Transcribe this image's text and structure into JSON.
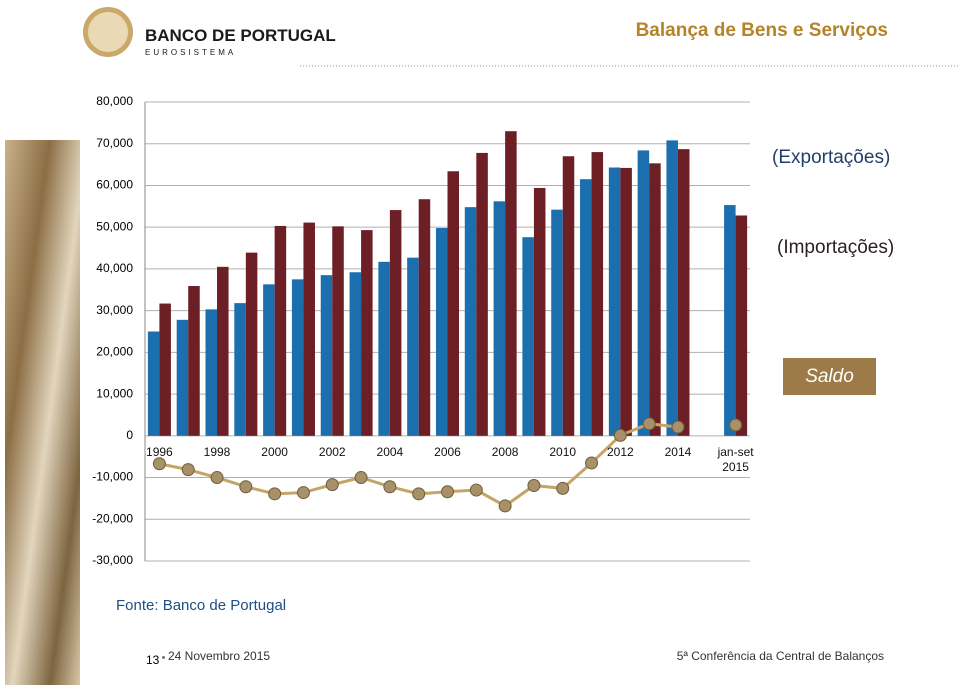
{
  "header": {
    "org": "BANCO DE PORTUGAL",
    "org_sub": "EUROSISTEMA",
    "title": "Balança de Bens e Serviços"
  },
  "chart_data": {
    "type": "bar",
    "categories": [
      "1996",
      null,
      "1998",
      null,
      "2000",
      null,
      "2002",
      null,
      "2004",
      null,
      "2006",
      null,
      "2008",
      null,
      "2010",
      null,
      "2012",
      null,
      "2014",
      null,
      "jan-set\n2015"
    ],
    "series": [
      {
        "name": "(Exportações)",
        "color": "#1c6fae",
        "values": [
          25000,
          27800,
          30300,
          31800,
          36300,
          37500,
          38500,
          39200,
          41700,
          42700,
          49800,
          54800,
          56200,
          47600,
          54200,
          61500,
          64300,
          68400,
          70800,
          null,
          55300
        ]
      },
      {
        "name": "(Importações)",
        "color": "#6d1f26",
        "values": [
          31700,
          35900,
          40500,
          43900,
          50300,
          51100,
          50200,
          49300,
          54100,
          56700,
          63400,
          67800,
          73000,
          59400,
          67000,
          68000,
          64200,
          65300,
          68700,
          null,
          52800
        ]
      },
      {
        "name": "Saldo",
        "type": "line",
        "color": "#9c7b49",
        "values": [
          -6700,
          -8100,
          -10000,
          -12200,
          -13900,
          -13600,
          -11700,
          -10000,
          -12200,
          -13900,
          -13400,
          -13000,
          -16800,
          -11900,
          -12600,
          -6500,
          100,
          2900,
          2100,
          null,
          2600
        ]
      }
    ],
    "ylim": [
      -30000,
      80000
    ],
    "yticks": [
      {
        "value": -30000,
        "label": "-30,000"
      },
      {
        "value": -20000,
        "label": "-20,000"
      },
      {
        "value": -10000,
        "label": "-10,000"
      },
      0,
      {
        "value": 10000,
        "label": "10,000"
      },
      {
        "value": 20000,
        "label": "20,000"
      },
      {
        "value": 30000,
        "label": "30,000"
      },
      {
        "value": 40000,
        "label": "40,000"
      },
      {
        "value": 50000,
        "label": "50,000"
      },
      {
        "value": 60000,
        "label": "60,000"
      },
      {
        "value": 70000,
        "label": "70,000"
      },
      {
        "value": 80000,
        "label": "80,000"
      }
    ],
    "grid": true,
    "source": "Fonte: Banco de Portugal"
  },
  "footer": {
    "page": "13",
    "date": "24 Novembro 2015",
    "event": "5ª Conferência da Central de Balanços"
  }
}
